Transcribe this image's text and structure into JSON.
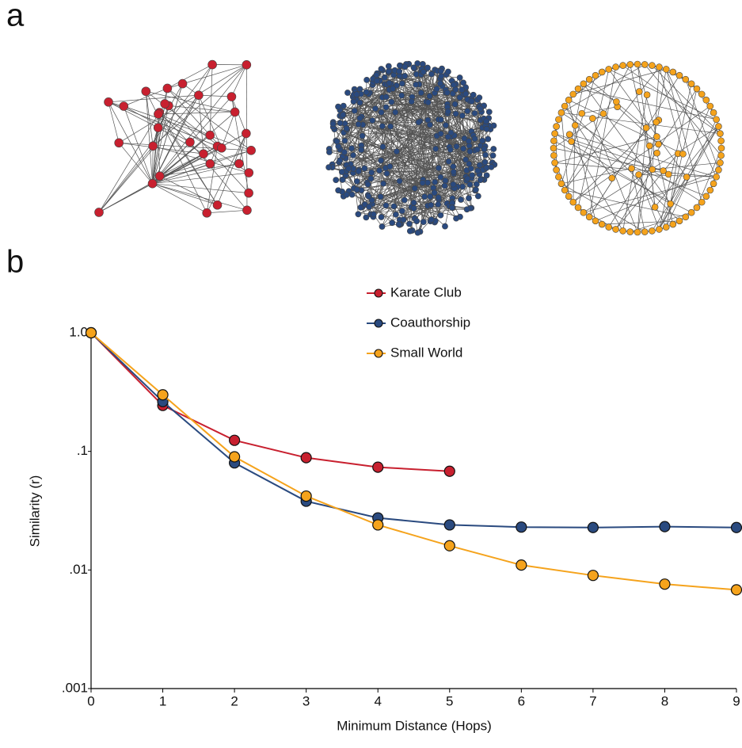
{
  "panel_labels": [
    "a",
    "b"
  ],
  "chart_data": {
    "type": "line",
    "x_label": "Minimum Distance (Hops)",
    "y_label": "Similarity (r)",
    "x": [
      0,
      1,
      2,
      3,
      4,
      5,
      6,
      7,
      8,
      9
    ],
    "xlim": [
      0,
      9
    ],
    "xticks": [
      0,
      1,
      2,
      3,
      4,
      5,
      6,
      7,
      8,
      9
    ],
    "ylim": [
      0.001,
      1
    ],
    "yscale": "log",
    "yticks": [
      {
        "value": 1,
        "label": "1.0"
      },
      {
        "value": 0.1,
        "label": ".1"
      },
      {
        "value": 0.01,
        "label": ".01"
      },
      {
        "value": 0.001,
        "label": ".001"
      }
    ],
    "grid": false,
    "legend_position": "top",
    "series": [
      {
        "name": "Karate Club",
        "color": "#c8202f",
        "values": [
          1.0,
          0.244,
          0.124,
          0.0885,
          0.0736,
          0.068,
          null,
          null,
          null,
          null
        ]
      },
      {
        "name": "Coauthorship",
        "color": "#2a4a7f",
        "values": [
          1.0,
          0.263,
          0.08,
          0.038,
          0.0275,
          0.024,
          0.023,
          0.0228,
          0.0232,
          0.0228
        ]
      },
      {
        "name": "Small World",
        "color": "#f5a31c",
        "values": [
          1.0,
          0.3,
          0.09,
          0.042,
          0.024,
          0.016,
          0.011,
          0.009,
          0.0076,
          0.0068
        ]
      }
    ]
  }
}
